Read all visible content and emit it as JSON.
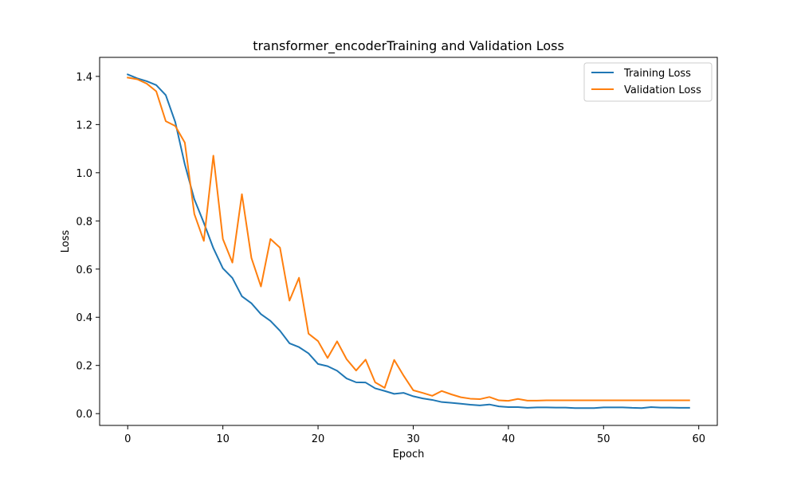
{
  "chart_data": {
    "type": "line",
    "title": "transformer_encoderTraining and Validation Loss",
    "xlabel": "Epoch",
    "ylabel": "Loss",
    "xlim": [
      -2.95,
      61.95
    ],
    "ylim": [
      -0.049,
      1.479
    ],
    "x_ticks": [
      0,
      10,
      20,
      30,
      40,
      50,
      60
    ],
    "y_ticks": [
      0.0,
      0.2,
      0.4,
      0.6,
      0.8,
      1.0,
      1.2,
      1.4
    ],
    "y_tick_labels": [
      "0.0",
      "0.2",
      "0.4",
      "0.6",
      "0.8",
      "1.0",
      "1.2",
      "1.4"
    ],
    "x_tick_labels": [
      "0",
      "10",
      "20",
      "30",
      "40",
      "50",
      "60"
    ],
    "grid": false,
    "legend_position": "top-right",
    "x": [
      0,
      1,
      2,
      3,
      4,
      5,
      6,
      7,
      8,
      9,
      10,
      11,
      12,
      13,
      14,
      15,
      16,
      17,
      18,
      19,
      20,
      21,
      22,
      23,
      24,
      25,
      26,
      27,
      28,
      29,
      30,
      31,
      32,
      33,
      34,
      35,
      36,
      37,
      38,
      39,
      40,
      41,
      42,
      43,
      44,
      45,
      46,
      47,
      48,
      49,
      50,
      51,
      52,
      53,
      54,
      55,
      56,
      57,
      58,
      59
    ],
    "series": [
      {
        "name": "Training Loss",
        "color": "#1f77b4",
        "values": [
          1.408,
          1.392,
          1.38,
          1.364,
          1.322,
          1.21,
          1.035,
          0.89,
          0.792,
          0.687,
          0.603,
          0.563,
          0.487,
          0.458,
          0.413,
          0.385,
          0.344,
          0.292,
          0.276,
          0.25,
          0.206,
          0.197,
          0.178,
          0.146,
          0.13,
          0.129,
          0.105,
          0.094,
          0.082,
          0.086,
          0.072,
          0.063,
          0.057,
          0.048,
          0.045,
          0.041,
          0.037,
          0.034,
          0.038,
          0.03,
          0.027,
          0.027,
          0.024,
          0.026,
          0.026,
          0.025,
          0.025,
          0.023,
          0.023,
          0.023,
          0.026,
          0.026,
          0.026,
          0.024,
          0.023,
          0.027,
          0.025,
          0.025,
          0.024,
          0.024
        ]
      },
      {
        "name": "Validation Loss",
        "color": "#ff7f0e",
        "values": [
          1.395,
          1.388,
          1.37,
          1.338,
          1.214,
          1.194,
          1.125,
          0.829,
          0.717,
          1.071,
          0.725,
          0.627,
          0.911,
          0.646,
          0.528,
          0.725,
          0.689,
          0.469,
          0.564,
          0.332,
          0.301,
          0.231,
          0.3,
          0.226,
          0.179,
          0.224,
          0.13,
          0.107,
          0.223,
          0.157,
          0.097,
          0.086,
          0.074,
          0.094,
          0.08,
          0.068,
          0.062,
          0.06,
          0.069,
          0.055,
          0.053,
          0.061,
          0.054,
          0.054,
          0.055,
          0.055,
          0.055,
          0.055,
          0.055,
          0.055,
          0.055,
          0.055,
          0.055,
          0.055,
          0.055,
          0.055,
          0.055,
          0.055,
          0.055,
          0.055
        ]
      }
    ]
  }
}
